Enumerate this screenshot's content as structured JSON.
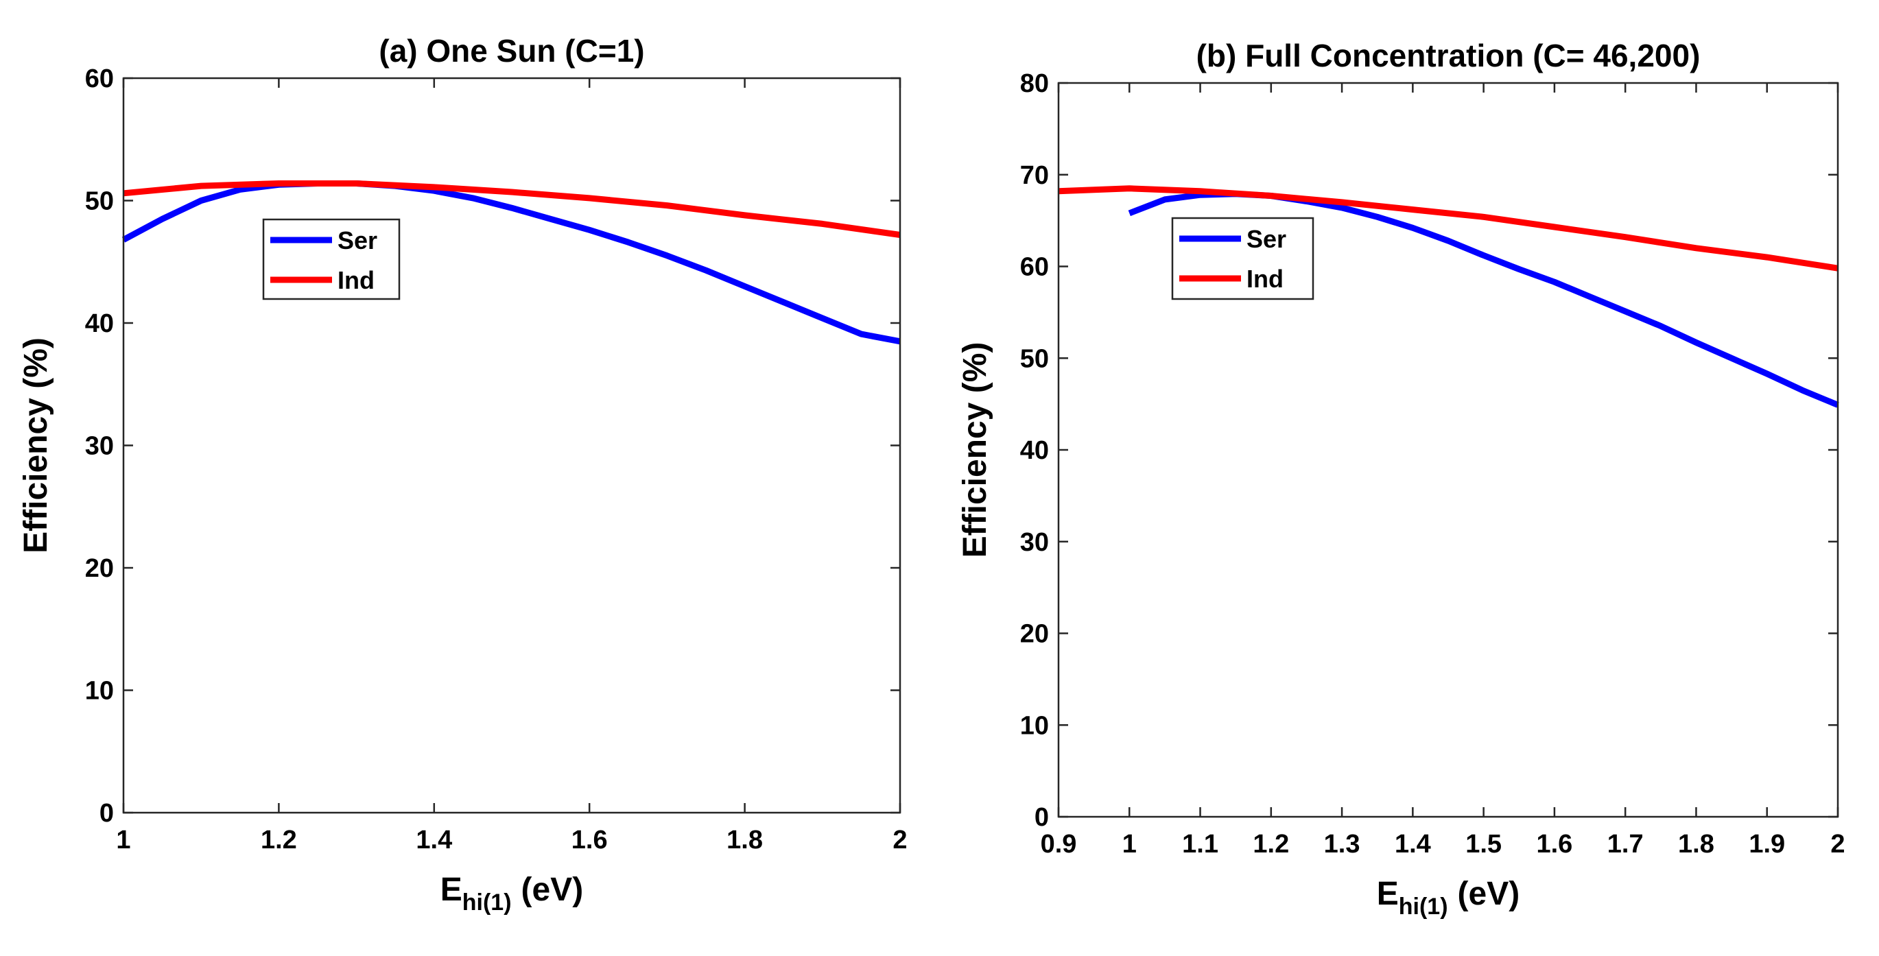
{
  "chart_data": [
    {
      "type": "line",
      "title": "(a) One Sun (C=1)",
      "xlabel": {
        "main": "E",
        "sub": "hi(1)",
        "unit": "(eV)"
      },
      "ylabel": "Efficiency (%)",
      "xlim": [
        1,
        2
      ],
      "ylim": [
        0,
        60
      ],
      "xticks": [
        1,
        1.2,
        1.4,
        1.6,
        1.8,
        2
      ],
      "xtick_labels": [
        "1",
        "1.2",
        "1.4",
        "1.6",
        "1.8",
        "2"
      ],
      "yticks": [
        0,
        10,
        20,
        30,
        40,
        50,
        60
      ],
      "ytick_labels": [
        "0",
        "10",
        "20",
        "30",
        "40",
        "50",
        "60"
      ],
      "legend_position": "upper-left",
      "series": [
        {
          "name": "Ser",
          "color": "#0000ff",
          "x": [
            1.0,
            1.05,
            1.1,
            1.15,
            1.2,
            1.25,
            1.3,
            1.35,
            1.4,
            1.45,
            1.5,
            1.55,
            1.6,
            1.65,
            1.7,
            1.75,
            1.8,
            1.85,
            1.9,
            1.95,
            2.0
          ],
          "y": [
            46.8,
            48.5,
            50.0,
            50.9,
            51.3,
            51.4,
            51.4,
            51.2,
            50.8,
            50.2,
            49.4,
            48.5,
            47.6,
            46.6,
            45.5,
            44.3,
            43.0,
            41.7,
            40.4,
            39.1,
            38.5
          ]
        },
        {
          "name": "Ind",
          "color": "#ff0000",
          "x": [
            1.0,
            1.1,
            1.2,
            1.3,
            1.4,
            1.5,
            1.6,
            1.7,
            1.8,
            1.9,
            2.0
          ],
          "y": [
            50.6,
            51.2,
            51.4,
            51.4,
            51.1,
            50.7,
            50.2,
            49.6,
            48.8,
            48.1,
            47.2
          ]
        }
      ]
    },
    {
      "type": "line",
      "title": "(b) Full Concentration (C= 46,200)",
      "xlabel": {
        "main": "E",
        "sub": "hi(1)",
        "unit": "(eV)"
      },
      "ylabel": "Efficiency (%)",
      "xlim": [
        0.9,
        2
      ],
      "ylim": [
        0,
        80
      ],
      "xticks": [
        0.9,
        1,
        1.1,
        1.2,
        1.3,
        1.4,
        1.5,
        1.6,
        1.7,
        1.8,
        1.9,
        2
      ],
      "xtick_labels": [
        "0.9",
        "1",
        "1.1",
        "1.2",
        "1.3",
        "1.4",
        "1.5",
        "1.6",
        "1.7",
        "1.8",
        "1.9",
        "2"
      ],
      "yticks": [
        0,
        10,
        20,
        30,
        40,
        50,
        60,
        70,
        80
      ],
      "ytick_labels": [
        "0",
        "10",
        "20",
        "30",
        "40",
        "50",
        "60",
        "70",
        "80"
      ],
      "legend_position": "upper-left",
      "series": [
        {
          "name": "Ser",
          "color": "#0000ff",
          "x": [
            1.0,
            1.05,
            1.1,
            1.15,
            1.2,
            1.25,
            1.3,
            1.35,
            1.4,
            1.45,
            1.5,
            1.55,
            1.6,
            1.65,
            1.7,
            1.75,
            1.8,
            1.85,
            1.9,
            1.95,
            2.0
          ],
          "y": [
            65.8,
            67.3,
            67.8,
            67.9,
            67.7,
            67.1,
            66.4,
            65.4,
            64.2,
            62.8,
            61.2,
            59.7,
            58.3,
            56.7,
            55.1,
            53.5,
            51.7,
            50.0,
            48.3,
            46.5,
            44.9
          ]
        },
        {
          "name": "Ind",
          "color": "#ff0000",
          "x": [
            0.9,
            1.0,
            1.1,
            1.2,
            1.3,
            1.4,
            1.5,
            1.6,
            1.7,
            1.8,
            1.9,
            2.0
          ],
          "y": [
            68.2,
            68.5,
            68.2,
            67.7,
            67.0,
            66.2,
            65.4,
            64.3,
            63.2,
            62.0,
            61.0,
            59.8
          ]
        }
      ]
    }
  ]
}
